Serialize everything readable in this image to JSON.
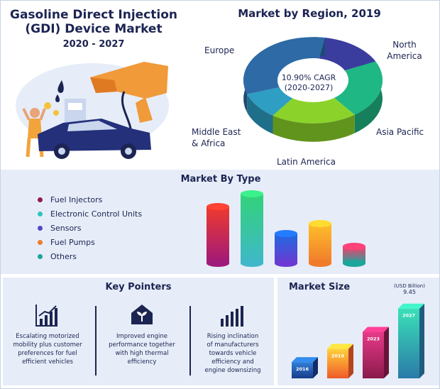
{
  "header": {
    "title_line1": "Gasoline Direct Injection",
    "title_line2": "(GDI) Device Market",
    "years": "2020 - 2027"
  },
  "region": {
    "title": "Market by Region, 2019",
    "cagr_line1": "10.90% CAGR",
    "cagr_line2": "(2020-2027)",
    "labels": {
      "europe": "Europe",
      "north_america_1": "North",
      "north_america_2": "America",
      "asia_pacific": "Asia Pacific",
      "latin_america": "Latin America",
      "mea_1": "Middle East",
      "mea_2": "& Africa"
    }
  },
  "type_section": {
    "title": "Market By Type",
    "legend": [
      {
        "label": "Fuel Injectors",
        "color": "#8e1a55"
      },
      {
        "label": "Electronic Control Units",
        "color": "#2bc7bf"
      },
      {
        "label": "Sensors",
        "color": "#5a46c4"
      },
      {
        "label": "Fuel Pumps",
        "color": "#f07b2c"
      },
      {
        "label": "Others",
        "color": "#1ba59b"
      }
    ]
  },
  "pointers": {
    "title": "Key Pointers",
    "items": [
      {
        "line1": "Escalating motorized",
        "line2": "mobility plus customer",
        "line3": "preferences for fuel",
        "line4": "efficient vehicles"
      },
      {
        "line1": "Improved engine",
        "line2": "performance together",
        "line3": "with high thermal",
        "line4": "efficiency"
      },
      {
        "line1": "Rising inclination",
        "line2": "of manufacturers",
        "line3": "towards vehicle",
        "line4": "efficiency and",
        "line5": "engine downsizing"
      }
    ]
  },
  "market_size": {
    "title": "Market Size",
    "unit": "(USD Billion)",
    "value_label": "9.45"
  },
  "chart_data": [
    {
      "type": "pie",
      "title": "Market by Region, 2019",
      "categories": [
        "North America",
        "Asia Pacific",
        "Latin America",
        "Middle East & Africa",
        "Europe"
      ],
      "values": [
        15,
        22,
        20,
        10,
        33
      ],
      "colors": [
        "#3a3d9e",
        "#1fb784",
        "#8bd32a",
        "#2e9ec3",
        "#2d6aa6"
      ]
    },
    {
      "type": "bar",
      "title": "Market By Type",
      "categories": [
        "Fuel Injectors",
        "Electronic Control Units",
        "Sensors",
        "Fuel Pumps",
        "Others"
      ],
      "values": [
        80,
        98,
        42,
        56,
        24
      ],
      "ylim": [
        0,
        100
      ],
      "colors": [
        [
          "#f03a2e",
          "#a01a7a"
        ],
        [
          "#33d27a",
          "#3fb8c8"
        ],
        [
          "#1f6be0",
          "#6a3ad2"
        ],
        [
          "#ffbf2a",
          "#f07b2c"
        ],
        [
          "#ff3a6a",
          "#1ba59b"
        ]
      ]
    },
    {
      "type": "bar",
      "title": "Market Size",
      "categories": [
        "2016",
        "2019",
        "2023",
        "2027"
      ],
      "values": [
        2.2,
        4.0,
        6.3,
        9.45
      ],
      "ylim": [
        0,
        10
      ],
      "colors": [
        [
          "#2f7fd8",
          "#1a3a8a"
        ],
        [
          "#ffd23a",
          "#f05a2a"
        ],
        [
          "#e83a8a",
          "#8a1a4a"
        ],
        [
          "#3ae0b8",
          "#2a7aa8"
        ]
      ]
    }
  ]
}
